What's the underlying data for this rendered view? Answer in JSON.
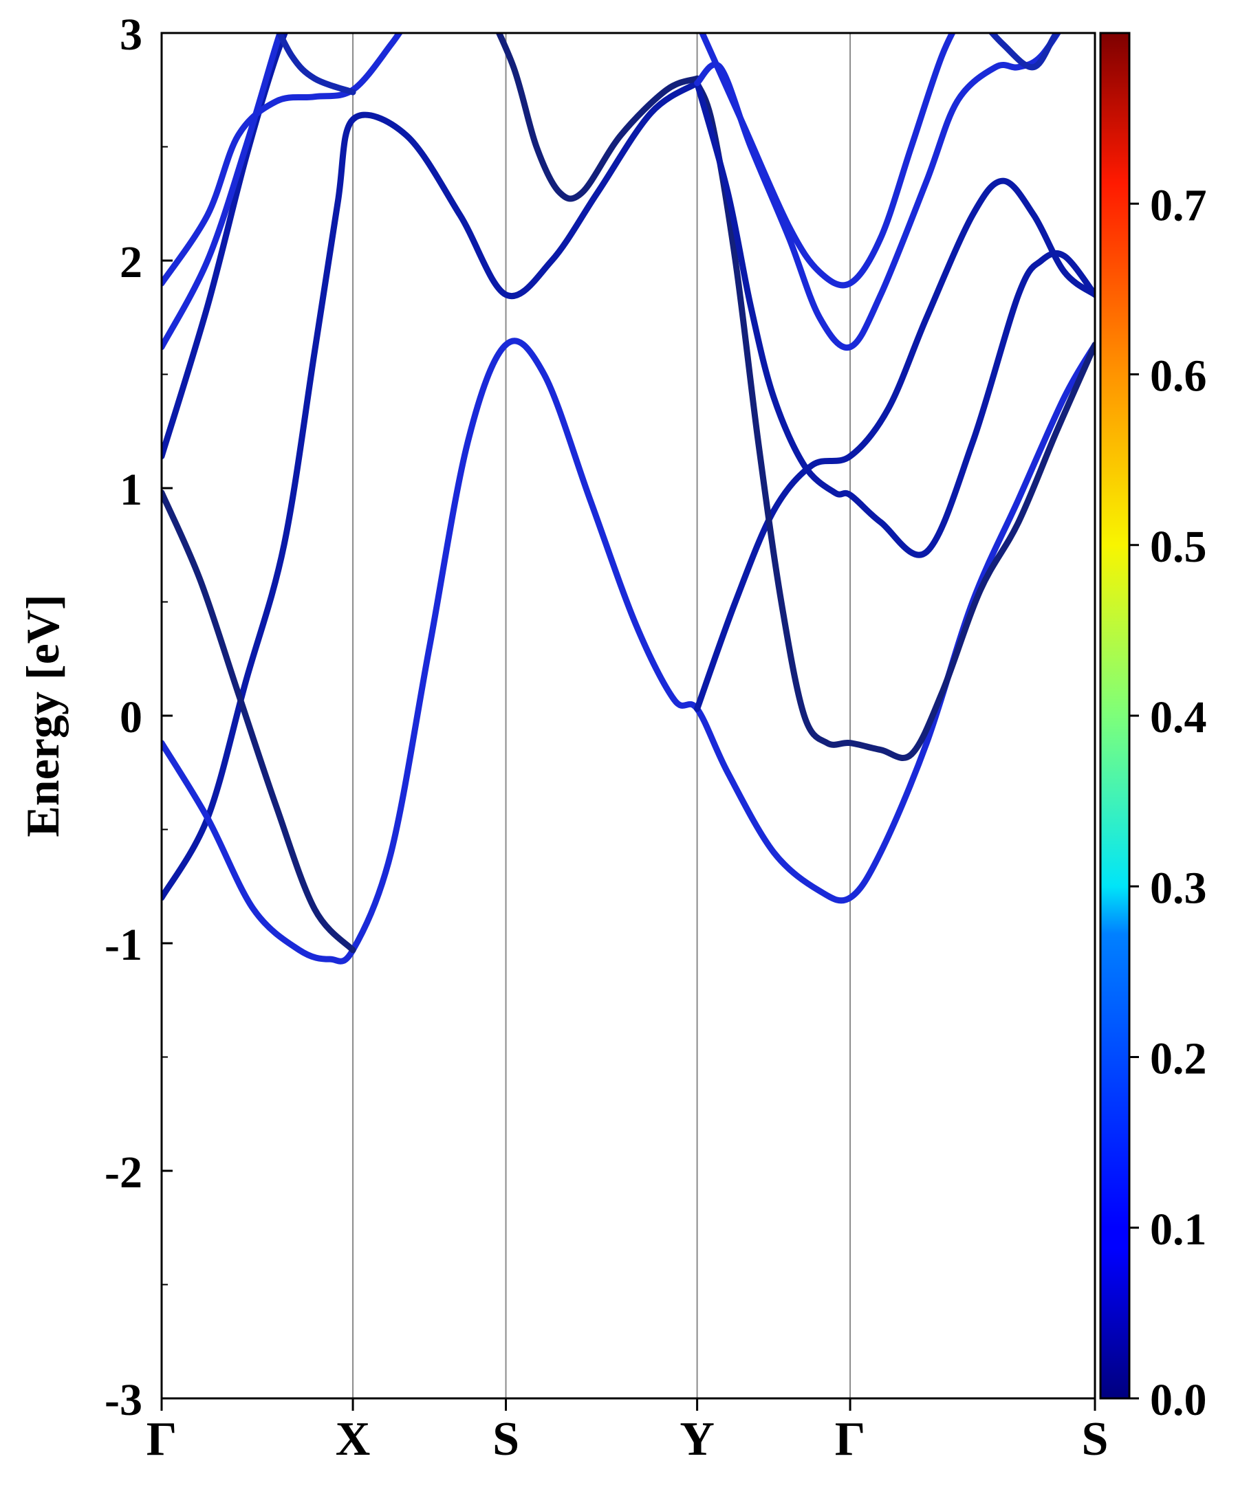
{
  "chart_data": {
    "type": "line",
    "title": "",
    "xlabel": "",
    "ylabel": "Energy [eV]",
    "ylim": [
      -3,
      3
    ],
    "xlim": [
      0,
      6.1
    ],
    "y_ticks": [
      -3,
      -2,
      -1,
      0,
      1,
      2,
      3
    ],
    "y_tick_labels": [
      "-3",
      "-2",
      "-1",
      "0",
      "1",
      "2",
      "3"
    ],
    "x_ticks": [
      {
        "label": "Γ",
        "value": 0
      },
      {
        "label": "X",
        "value": 1.25
      },
      {
        "label": "S",
        "value": 2.25
      },
      {
        "label": "Y",
        "value": 3.5
      },
      {
        "label": "Γ",
        "value": 4.5
      },
      {
        "label": "S",
        "value": 6.1
      }
    ],
    "colorbar": {
      "min": 0.0,
      "max": 0.8,
      "ticks": [
        0.0,
        0.1,
        0.2,
        0.3,
        0.4,
        0.5,
        0.6,
        0.7
      ],
      "tick_labels": [
        "0.0",
        "0.1",
        "0.2",
        "0.3",
        "0.4",
        "0.5",
        "0.6",
        "0.7"
      ],
      "colormap": "jet"
    },
    "series": [
      {
        "color": "#0a1aa8",
        "points": [
          [
            0,
            -0.8
          ],
          [
            0.3,
            -0.45
          ],
          [
            0.55,
            0.15
          ],
          [
            0.8,
            0.75
          ],
          [
            1.0,
            1.6
          ],
          [
            1.15,
            2.25
          ],
          [
            1.25,
            2.62
          ],
          [
            1.6,
            2.55
          ],
          [
            1.95,
            2.2
          ],
          [
            2.25,
            1.85
          ],
          [
            2.55,
            2.0
          ],
          [
            2.85,
            2.3
          ],
          [
            3.2,
            2.65
          ],
          [
            3.5,
            2.78
          ]
        ]
      },
      {
        "color": "#1a2ad8",
        "points": [
          [
            0,
            -0.12
          ],
          [
            0.3,
            -0.45
          ],
          [
            0.6,
            -0.85
          ],
          [
            0.9,
            -1.03
          ],
          [
            1.1,
            -1.07
          ],
          [
            1.25,
            -1.03
          ],
          [
            1.5,
            -0.6
          ],
          [
            1.75,
            0.3
          ],
          [
            2.0,
            1.2
          ],
          [
            2.25,
            1.63
          ],
          [
            2.5,
            1.5
          ],
          [
            2.8,
            0.95
          ],
          [
            3.1,
            0.4
          ],
          [
            3.35,
            0.07
          ],
          [
            3.5,
            0.03
          ],
          [
            3.7,
            -0.25
          ],
          [
            4.0,
            -0.6
          ],
          [
            4.3,
            -0.77
          ],
          [
            4.5,
            -0.8
          ],
          [
            4.7,
            -0.6
          ],
          [
            5.0,
            -0.12
          ],
          [
            5.3,
            0.5
          ],
          [
            5.6,
            0.95
          ],
          [
            5.9,
            1.4
          ],
          [
            6.1,
            1.63
          ]
        ]
      },
      {
        "color": "#13207a",
        "points": [
          [
            0,
            0.98
          ],
          [
            0.25,
            0.6
          ],
          [
            0.5,
            0.1
          ],
          [
            0.75,
            -0.4
          ],
          [
            1.0,
            -0.85
          ],
          [
            1.25,
            -1.03
          ]
        ]
      },
      {
        "color": "#0a1aa8",
        "points": [
          [
            0,
            1.14
          ],
          [
            0.3,
            1.8
          ],
          [
            0.55,
            2.45
          ],
          [
            0.75,
            2.9
          ],
          [
            0.9,
            3.15
          ]
        ]
      },
      {
        "color": "#1a2ad8",
        "points": [
          [
            0,
            1.62
          ],
          [
            0.3,
            2.0
          ],
          [
            0.55,
            2.5
          ],
          [
            0.75,
            2.95
          ],
          [
            0.85,
            3.15
          ]
        ]
      },
      {
        "color": "#1a2ad8",
        "points": [
          [
            0,
            1.9
          ],
          [
            0.3,
            2.2
          ],
          [
            0.5,
            2.55
          ],
          [
            0.75,
            2.7
          ],
          [
            1.0,
            2.72
          ],
          [
            1.25,
            2.75
          ],
          [
            1.5,
            2.95
          ],
          [
            1.65,
            3.1
          ]
        ]
      },
      {
        "color": "#1428b0",
        "points": [
          [
            0.7,
            3.1
          ],
          [
            0.85,
            2.9
          ],
          [
            1.0,
            2.8
          ],
          [
            1.25,
            2.74
          ]
        ]
      },
      {
        "color": "#13207a",
        "points": [
          [
            2.1,
            3.15
          ],
          [
            2.3,
            2.85
          ],
          [
            2.45,
            2.5
          ],
          [
            2.6,
            2.3
          ],
          [
            2.75,
            2.3
          ],
          [
            3.0,
            2.55
          ],
          [
            3.3,
            2.75
          ],
          [
            3.5,
            2.8
          ]
        ]
      },
      {
        "color": "#0a1aa8",
        "points": [
          [
            3.5,
            0.03
          ],
          [
            3.75,
            0.5
          ],
          [
            4.0,
            0.9
          ],
          [
            4.25,
            1.1
          ],
          [
            4.5,
            1.14
          ],
          [
            4.75,
            1.35
          ],
          [
            5.0,
            1.75
          ],
          [
            5.3,
            2.2
          ],
          [
            5.5,
            2.35
          ],
          [
            5.7,
            2.2
          ],
          [
            5.9,
            1.95
          ],
          [
            6.1,
            1.85
          ]
        ]
      },
      {
        "color": "#13207a",
        "points": [
          [
            3.5,
            2.78
          ],
          [
            3.6,
            2.6
          ],
          [
            3.75,
            2.0
          ],
          [
            3.9,
            1.2
          ],
          [
            4.05,
            0.5
          ],
          [
            4.2,
            0.0
          ],
          [
            4.35,
            -0.12
          ],
          [
            4.5,
            -0.12
          ],
          [
            4.7,
            -0.15
          ],
          [
            4.9,
            -0.17
          ],
          [
            5.1,
            0.1
          ],
          [
            5.35,
            0.55
          ],
          [
            5.6,
            0.85
          ],
          [
            5.85,
            1.25
          ],
          [
            6.1,
            1.63
          ]
        ]
      },
      {
        "color": "#0a1aa8",
        "points": [
          [
            3.5,
            2.78
          ],
          [
            3.7,
            2.3
          ],
          [
            3.85,
            1.8
          ],
          [
            4.0,
            1.4
          ],
          [
            4.2,
            1.1
          ],
          [
            4.4,
            0.98
          ],
          [
            4.5,
            0.97
          ],
          [
            4.7,
            0.85
          ],
          [
            5.0,
            0.72
          ],
          [
            5.3,
            1.2
          ],
          [
            5.6,
            1.85
          ],
          [
            5.75,
            2.0
          ],
          [
            5.9,
            2.02
          ],
          [
            6.1,
            1.85
          ]
        ]
      },
      {
        "color": "#1a2ad8",
        "points": [
          [
            3.5,
            2.78
          ],
          [
            3.65,
            2.85
          ],
          [
            3.85,
            2.5
          ],
          [
            4.1,
            2.1
          ],
          [
            4.3,
            1.75
          ],
          [
            4.5,
            1.62
          ],
          [
            4.7,
            1.85
          ],
          [
            5.0,
            2.35
          ],
          [
            5.2,
            2.7
          ],
          [
            5.45,
            2.85
          ],
          [
            5.6,
            2.85
          ],
          [
            5.75,
            2.9
          ],
          [
            5.95,
            3.1
          ]
        ]
      },
      {
        "color": "#1a2ad8",
        "points": [
          [
            3.5,
            3.05
          ],
          [
            3.8,
            2.6
          ],
          [
            4.1,
            2.15
          ],
          [
            4.3,
            1.95
          ],
          [
            4.5,
            1.9
          ],
          [
            4.7,
            2.1
          ],
          [
            4.9,
            2.5
          ],
          [
            5.1,
            2.9
          ],
          [
            5.25,
            3.1
          ]
        ]
      },
      {
        "color": "#1428b0",
        "points": [
          [
            5.3,
            3.1
          ],
          [
            5.5,
            2.95
          ],
          [
            5.7,
            2.85
          ],
          [
            5.85,
            3.0
          ],
          [
            6.0,
            3.1
          ]
        ]
      }
    ]
  }
}
